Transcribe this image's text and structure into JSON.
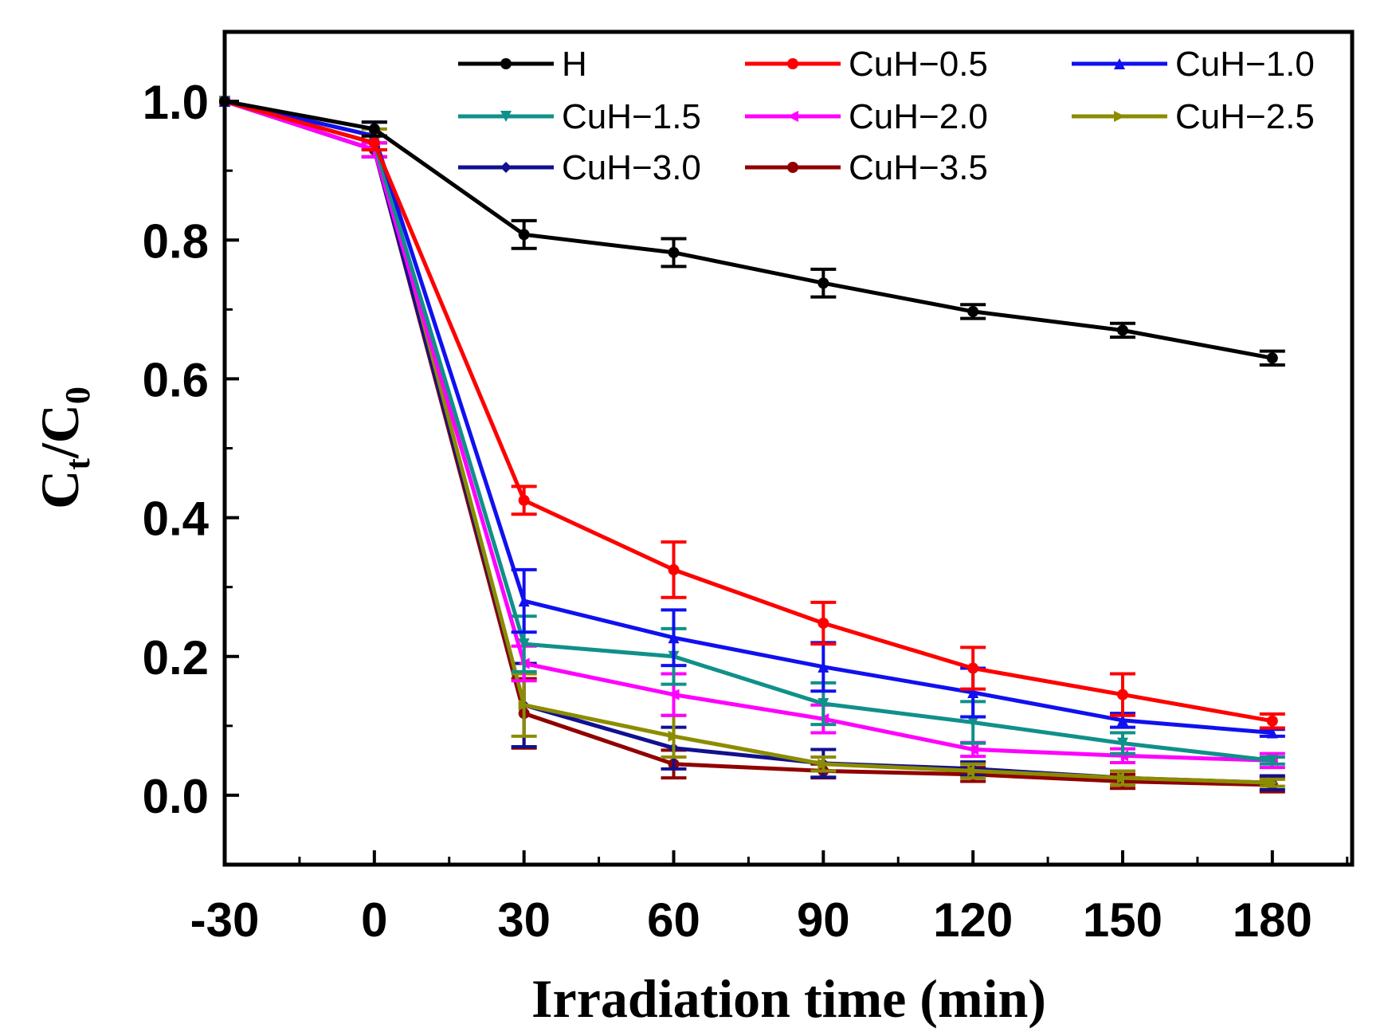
{
  "chart_data": {
    "type": "line",
    "title": "",
    "xlabel": "Irradiation time (min)",
    "ylabel_main": "C",
    "ylabel_sub1": "t",
    "ylabel_slash": "/",
    "ylabel_sub2": "0",
    "xlim": [
      -30,
      196
    ],
    "ylim": [
      -0.1,
      1.1
    ],
    "x_ticks": [
      -30,
      0,
      30,
      60,
      90,
      120,
      150,
      180
    ],
    "x_tick_labels": [
      "-30",
      "0",
      "30",
      "60",
      "90",
      "120",
      "150",
      "180"
    ],
    "y_ticks": [
      0.0,
      0.2,
      0.4,
      0.6,
      0.8,
      1.0
    ],
    "y_tick_labels": [
      "0.0",
      "0.2",
      "0.4",
      "0.6",
      "0.8",
      "1.0"
    ],
    "x": [
      -30,
      0,
      30,
      60,
      90,
      120,
      150,
      180
    ],
    "legend_position": "top-right",
    "series": [
      {
        "name": "H",
        "color": "#000000",
        "marker": "circle",
        "values": [
          1.0,
          0.96,
          0.808,
          0.782,
          0.738,
          0.697,
          0.67,
          0.63
        ],
        "errors": [
          0,
          0.01,
          0.02,
          0.02,
          0.02,
          0.01,
          0.01,
          0.01
        ]
      },
      {
        "name": "CuH−0.5",
        "color": "#ff0000",
        "marker": "circle",
        "values": [
          1.0,
          0.94,
          0.425,
          0.325,
          0.248,
          0.183,
          0.145,
          0.107
        ],
        "errors": [
          0,
          0.01,
          0.02,
          0.04,
          0.03,
          0.03,
          0.03,
          0.01
        ]
      },
      {
        "name": "CuH−1.0",
        "color": "#1010f0",
        "marker": "triangle-up",
        "values": [
          1.0,
          0.95,
          0.28,
          0.227,
          0.185,
          0.148,
          0.108,
          0.09
        ],
        "errors": [
          0,
          0.02,
          0.045,
          0.04,
          0.035,
          0.035,
          0.01,
          0.005
        ]
      },
      {
        "name": "CuH−1.5",
        "color": "#10908a",
        "marker": "triangle-down",
        "values": [
          1.0,
          0.94,
          0.218,
          0.2,
          0.132,
          0.105,
          0.075,
          0.05
        ],
        "errors": [
          0,
          0.01,
          0.04,
          0.04,
          0.03,
          0.03,
          0.015,
          0.005
        ]
      },
      {
        "name": "CuH−2.0",
        "color": "#ff00ff",
        "marker": "triangle-left",
        "values": [
          1.0,
          0.93,
          0.19,
          0.145,
          0.11,
          0.066,
          0.057,
          0.05
        ],
        "errors": [
          0,
          0.01,
          0.025,
          0.03,
          0.02,
          0.01,
          0.01,
          0.01
        ]
      },
      {
        "name": "CuH−2.5",
        "color": "#8c8c00",
        "marker": "triangle-right",
        "values": [
          1.0,
          0.95,
          0.13,
          0.085,
          0.045,
          0.035,
          0.025,
          0.018
        ],
        "errors": [
          0,
          0.01,
          0.045,
          0.03,
          0.01,
          0.01,
          0.01,
          0.005
        ]
      },
      {
        "name": "CuH−3.0",
        "color": "#101090",
        "marker": "diamond",
        "values": [
          1.0,
          0.93,
          0.13,
          0.068,
          0.046,
          0.038,
          0.025,
          0.018
        ],
        "errors": [
          0,
          0.01,
          0.06,
          0.03,
          0.02,
          0.01,
          0.01,
          0.01
        ]
      },
      {
        "name": "CuH−3.5",
        "color": "#900000",
        "marker": "circle",
        "values": [
          1.0,
          0.93,
          0.118,
          0.045,
          0.035,
          0.03,
          0.02,
          0.015
        ],
        "errors": [
          0,
          0.01,
          0.05,
          0.02,
          0.01,
          0.01,
          0.01,
          0.01
        ]
      }
    ]
  }
}
